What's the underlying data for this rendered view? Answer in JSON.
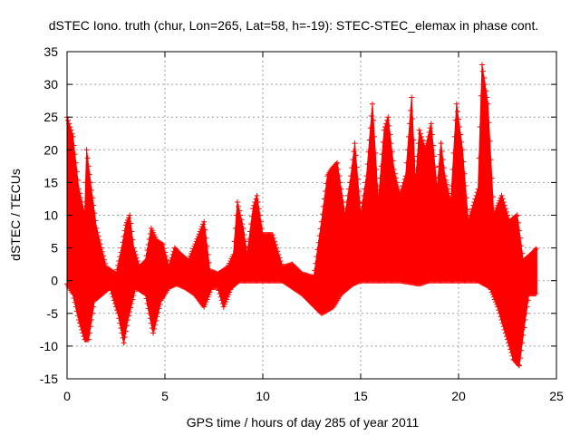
{
  "chart_data": {
    "type": "scatter",
    "title": "dSTEC Iono. truth (chur, Lon=265, Lat=58, h=-19): STEC-STEC_elemax in phase cont.",
    "xlabel": "GPS time / hours of day 285 of year 2011",
    "ylabel": "dSTEC  / TECUs",
    "xlim": [
      0,
      25
    ],
    "ylim": [
      -15,
      35
    ],
    "xticks": [
      0,
      5,
      10,
      15,
      20,
      25
    ],
    "yticks": [
      -15,
      -10,
      -5,
      0,
      5,
      10,
      15,
      20,
      25,
      30,
      35
    ],
    "grid": true,
    "marker": "+",
    "color": "#ff0000",
    "series": [
      {
        "upper_envelope": [
          [
            0.0,
            25
          ],
          [
            0.3,
            22
          ],
          [
            0.6,
            14
          ],
          [
            0.9,
            10
          ],
          [
            1.0,
            20
          ],
          [
            1.2,
            15
          ],
          [
            1.5,
            8
          ],
          [
            2.0,
            2
          ],
          [
            2.5,
            1
          ],
          [
            2.8,
            5
          ],
          [
            3.0,
            8.5
          ],
          [
            3.2,
            10
          ],
          [
            3.4,
            5
          ],
          [
            3.7,
            2
          ],
          [
            4.0,
            3
          ],
          [
            4.3,
            8
          ],
          [
            4.6,
            6
          ],
          [
            4.9,
            5.5
          ],
          [
            5.2,
            2
          ],
          [
            5.5,
            5
          ],
          [
            5.8,
            4
          ],
          [
            6.2,
            3
          ],
          [
            6.6,
            6
          ],
          [
            7.0,
            9
          ],
          [
            7.3,
            1.5
          ],
          [
            7.7,
            1
          ],
          [
            8.2,
            2
          ],
          [
            8.5,
            4
          ],
          [
            8.7,
            12
          ],
          [
            9.0,
            8
          ],
          [
            9.2,
            4
          ],
          [
            9.5,
            11
          ],
          [
            9.7,
            13
          ],
          [
            10.0,
            7
          ],
          [
            10.5,
            7
          ],
          [
            11.0,
            2
          ],
          [
            11.5,
            2.5
          ],
          [
            12.0,
            1
          ],
          [
            12.6,
            0.5
          ],
          [
            13.0,
            9
          ],
          [
            13.3,
            16
          ],
          [
            13.5,
            17
          ],
          [
            13.8,
            18
          ],
          [
            14.2,
            10
          ],
          [
            14.5,
            16
          ],
          [
            14.7,
            21
          ],
          [
            15.0,
            10
          ],
          [
            15.3,
            16
          ],
          [
            15.6,
            27
          ],
          [
            15.9,
            12
          ],
          [
            16.2,
            23
          ],
          [
            16.4,
            25
          ],
          [
            16.7,
            17
          ],
          [
            17.0,
            13
          ],
          [
            17.3,
            16
          ],
          [
            17.6,
            28
          ],
          [
            17.8,
            15
          ],
          [
            18.0,
            23
          ],
          [
            18.3,
            20
          ],
          [
            18.6,
            24
          ],
          [
            18.9,
            14
          ],
          [
            19.1,
            21
          ],
          [
            19.3,
            16
          ],
          [
            19.6,
            12
          ],
          [
            19.9,
            27
          ],
          [
            20.2,
            20
          ],
          [
            20.5,
            9
          ],
          [
            21.0,
            14
          ],
          [
            21.2,
            33
          ],
          [
            21.5,
            27
          ],
          [
            21.8,
            10
          ],
          [
            22.2,
            13
          ],
          [
            22.6,
            9
          ],
          [
            23.0,
            10
          ],
          [
            23.3,
            3
          ],
          [
            23.7,
            4
          ],
          [
            24.0,
            5
          ]
        ],
        "lower_envelope": [
          [
            0.0,
            -0.5
          ],
          [
            0.3,
            -2
          ],
          [
            0.6,
            -6
          ],
          [
            0.9,
            -9
          ],
          [
            1.1,
            -9
          ],
          [
            1.4,
            -3
          ],
          [
            1.8,
            -2
          ],
          [
            2.2,
            -1
          ],
          [
            2.6,
            -5
          ],
          [
            2.9,
            -9.5
          ],
          [
            3.1,
            -6
          ],
          [
            3.5,
            -1
          ],
          [
            4.0,
            -2
          ],
          [
            4.4,
            -8
          ],
          [
            4.8,
            -3
          ],
          [
            5.2,
            -1
          ],
          [
            5.6,
            -0.5
          ],
          [
            6.0,
            -1
          ],
          [
            6.5,
            -2
          ],
          [
            7.0,
            -4
          ],
          [
            7.4,
            -1
          ],
          [
            7.7,
            -1
          ],
          [
            8.0,
            -4
          ],
          [
            8.4,
            -1
          ],
          [
            8.8,
            0
          ],
          [
            9.5,
            0
          ],
          [
            10.5,
            0
          ],
          [
            11.0,
            0
          ],
          [
            11.5,
            -1
          ],
          [
            12.0,
            -2
          ],
          [
            12.5,
            -3.5
          ],
          [
            13.0,
            -5
          ],
          [
            13.6,
            -4
          ],
          [
            14.0,
            -2
          ],
          [
            14.6,
            -0.5
          ],
          [
            15.0,
            0
          ],
          [
            16.0,
            0
          ],
          [
            17.0,
            0
          ],
          [
            18.0,
            -0.5
          ],
          [
            18.5,
            0
          ],
          [
            19.0,
            0
          ],
          [
            20.0,
            0
          ],
          [
            21.0,
            0
          ],
          [
            21.6,
            -1
          ],
          [
            22.0,
            -4
          ],
          [
            22.4,
            -8
          ],
          [
            22.8,
            -12
          ],
          [
            23.1,
            -13
          ],
          [
            23.4,
            -6
          ],
          [
            23.6,
            -2
          ],
          [
            24.0,
            -2
          ]
        ]
      }
    ]
  }
}
